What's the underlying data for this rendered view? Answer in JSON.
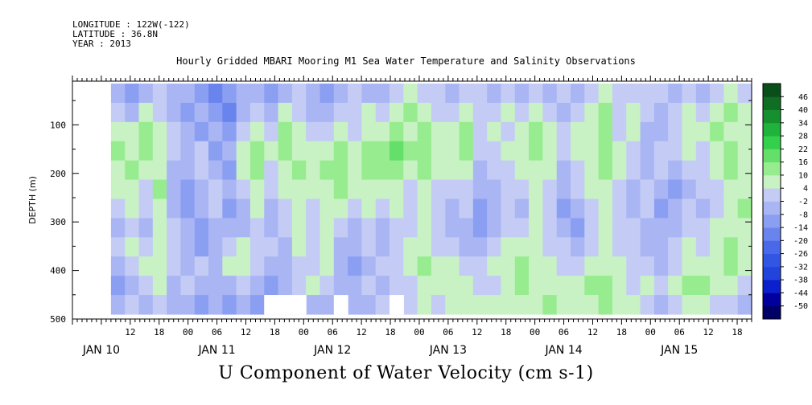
{
  "header": {
    "longitude": "LONGITUDE : 122W(-122)",
    "latitude": "LATITUDE : 36.8N",
    "year": "YEAR : 2013"
  },
  "title": "Hourly Gridded MBARI Mooring M1 Sea Water Temperature and Salinity Observations",
  "caption": "U Component of Water Velocity (cm s-1)",
  "chart_data": {
    "type": "heatmap",
    "variable": "U Component of Water Velocity",
    "units": "cm s-1",
    "ylabel": "DEPTH (m)",
    "y_reversed": true,
    "ylim": [
      500,
      10
    ],
    "y_ticks": [
      100,
      200,
      300,
      400,
      500
    ],
    "x_hour_range": [
      0,
      141
    ],
    "x_hour_ticks": [
      {
        "h": 12,
        "label": "12"
      },
      {
        "h": 18,
        "label": "18"
      },
      {
        "h": 24,
        "label": "00"
      },
      {
        "h": 30,
        "label": "06"
      },
      {
        "h": 36,
        "label": "12"
      },
      {
        "h": 42,
        "label": "18"
      },
      {
        "h": 48,
        "label": "00"
      },
      {
        "h": 54,
        "label": "06"
      },
      {
        "h": 60,
        "label": "12"
      },
      {
        "h": 66,
        "label": "18"
      },
      {
        "h": 72,
        "label": "00"
      },
      {
        "h": 78,
        "label": "06"
      },
      {
        "h": 84,
        "label": "12"
      },
      {
        "h": 90,
        "label": "18"
      },
      {
        "h": 96,
        "label": "00"
      },
      {
        "h": 102,
        "label": "06"
      },
      {
        "h": 108,
        "label": "12"
      },
      {
        "h": 114,
        "label": "18"
      },
      {
        "h": 120,
        "label": "00"
      },
      {
        "h": 126,
        "label": "06"
      },
      {
        "h": 132,
        "label": "12"
      },
      {
        "h": 138,
        "label": "18"
      }
    ],
    "x_date_labels": [
      {
        "h": 6,
        "label": "JAN 10"
      },
      {
        "h": 30,
        "label": "JAN 11"
      },
      {
        "h": 54,
        "label": "JAN 12"
      },
      {
        "h": 78,
        "label": "JAN 13"
      },
      {
        "h": 102,
        "label": "JAN 14"
      },
      {
        "h": 126,
        "label": "JAN 15"
      }
    ],
    "data_start_hour": 8,
    "colorbar": {
      "levels": [
        -50,
        -44,
        -38,
        -32,
        -26,
        -20,
        -14,
        -8,
        -2,
        4,
        10,
        16,
        22,
        28,
        34,
        40,
        46
      ],
      "colors": [
        "#000066",
        "#00009e",
        "#0b1fcc",
        "#2244dd",
        "#3355e4",
        "#4a68ea",
        "#6a84ee",
        "#8b9ff2",
        "#aab6f4",
        "#c4ccf5",
        "#c8f2c4",
        "#98ec90",
        "#64e06a",
        "#33d04c",
        "#1fb33c",
        "#168f2f",
        "#0f6e24",
        "#0a4f1a"
      ]
    },
    "rows": [
      [
        -8,
        -14,
        -8,
        -2,
        -8,
        -8,
        -14,
        -20,
        -14,
        -8,
        -8,
        -14,
        -8,
        -2,
        -8,
        -14,
        -8,
        -2,
        -8,
        -8,
        -2,
        4,
        -2,
        -2,
        -8,
        -2,
        -2,
        -8,
        -2,
        -8,
        -2,
        -8,
        -2,
        -8,
        -2,
        4,
        -2,
        -2,
        -2,
        -2,
        -8,
        -2,
        -8,
        -2,
        4,
        -2
      ],
      [
        -2,
        -8,
        4,
        -2,
        -8,
        -14,
        -8,
        -14,
        -20,
        -8,
        -2,
        -8,
        4,
        -2,
        -8,
        -8,
        -2,
        -2,
        4,
        -2,
        4,
        10,
        4,
        -2,
        -2,
        4,
        -2,
        -2,
        4,
        -2,
        4,
        -2,
        -8,
        -2,
        4,
        10,
        -2,
        4,
        -2,
        -8,
        -2,
        4,
        -2,
        4,
        10,
        4
      ],
      [
        4,
        4,
        10,
        4,
        -2,
        -8,
        -14,
        -8,
        -14,
        -2,
        4,
        -2,
        10,
        4,
        -2,
        -2,
        4,
        -2,
        4,
        4,
        10,
        4,
        10,
        4,
        4,
        10,
        -2,
        4,
        -2,
        4,
        10,
        4,
        -2,
        4,
        4,
        10,
        -2,
        4,
        -8,
        -8,
        -2,
        4,
        4,
        10,
        4,
        4
      ],
      [
        10,
        4,
        10,
        4,
        -2,
        -8,
        -2,
        -14,
        -8,
        4,
        10,
        4,
        10,
        4,
        4,
        4,
        10,
        4,
        10,
        10,
        16,
        10,
        10,
        4,
        4,
        10,
        -2,
        -2,
        4,
        4,
        10,
        4,
        -2,
        4,
        4,
        10,
        4,
        -2,
        -8,
        -2,
        -2,
        4,
        -2,
        4,
        10,
        4
      ],
      [
        4,
        10,
        4,
        4,
        -8,
        -8,
        -2,
        -8,
        -14,
        4,
        10,
        -2,
        4,
        10,
        4,
        10,
        10,
        4,
        10,
        10,
        10,
        4,
        10,
        4,
        4,
        4,
        -8,
        -2,
        -2,
        4,
        4,
        4,
        -8,
        -2,
        4,
        10,
        4,
        -2,
        -8,
        -2,
        -8,
        -2,
        -2,
        4,
        10,
        4
      ],
      [
        4,
        4,
        -2,
        10,
        -8,
        -14,
        -8,
        -2,
        -8,
        -2,
        4,
        -2,
        4,
        4,
        4,
        4,
        10,
        4,
        4,
        4,
        4,
        -2,
        4,
        -2,
        -2,
        -2,
        -8,
        -8,
        -2,
        -2,
        4,
        -2,
        -8,
        -2,
        4,
        4,
        -2,
        -8,
        -2,
        -8,
        -14,
        -8,
        -2,
        -2,
        4,
        4
      ],
      [
        -2,
        4,
        -2,
        4,
        -8,
        -14,
        -8,
        -2,
        -14,
        -8,
        4,
        -8,
        -2,
        4,
        -2,
        4,
        4,
        -2,
        4,
        -2,
        4,
        -2,
        4,
        -2,
        -8,
        -2,
        -14,
        -8,
        -2,
        -8,
        4,
        -2,
        -14,
        -8,
        -2,
        4,
        -2,
        -8,
        -2,
        -14,
        -8,
        -2,
        -8,
        -2,
        4,
        10
      ],
      [
        -8,
        -2,
        -8,
        4,
        -2,
        -8,
        -14,
        -8,
        -8,
        -8,
        -2,
        -8,
        -2,
        4,
        -2,
        4,
        -2,
        -8,
        -2,
        -8,
        -2,
        -2,
        4,
        -2,
        -8,
        -8,
        -14,
        -8,
        -2,
        -2,
        4,
        -2,
        -8,
        -14,
        -2,
        4,
        -2,
        -2,
        -8,
        -8,
        -8,
        -2,
        -2,
        4,
        4,
        4
      ],
      [
        -2,
        4,
        -2,
        4,
        -2,
        -8,
        -14,
        -8,
        -2,
        4,
        -2,
        -2,
        -8,
        4,
        -2,
        4,
        -8,
        -8,
        -2,
        -8,
        -2,
        4,
        4,
        -2,
        -2,
        -8,
        -8,
        -2,
        4,
        4,
        4,
        -2,
        -2,
        -8,
        -2,
        4,
        -2,
        -2,
        -8,
        -8,
        -2,
        4,
        -2,
        4,
        10,
        4
      ],
      [
        -8,
        -2,
        4,
        4,
        -2,
        -8,
        -2,
        -8,
        4,
        4,
        -2,
        -8,
        -8,
        -2,
        -2,
        4,
        -8,
        -14,
        -8,
        -2,
        -2,
        4,
        10,
        4,
        4,
        -2,
        -2,
        4,
        4,
        10,
        4,
        4,
        -2,
        -2,
        4,
        4,
        4,
        -2,
        -2,
        -8,
        -2,
        4,
        4,
        4,
        10,
        4
      ],
      [
        -14,
        -8,
        -2,
        4,
        -8,
        -2,
        -8,
        -8,
        -8,
        -2,
        -8,
        -14,
        -8,
        -2,
        4,
        -2,
        -8,
        -8,
        -2,
        -8,
        -2,
        -2,
        4,
        4,
        4,
        4,
        -2,
        -2,
        4,
        10,
        4,
        4,
        4,
        4,
        10,
        10,
        4,
        -2,
        4,
        -2,
        4,
        10,
        10,
        4,
        4,
        -2
      ],
      [
        -8,
        -2,
        -8,
        -2,
        -8,
        -8,
        -14,
        -8,
        -14,
        -8,
        -14,
        -8,
        -8,
        -14,
        -8,
        -8,
        -14,
        -8,
        -8,
        -2,
        -8,
        -2,
        4,
        -2,
        4,
        4,
        4,
        4,
        4,
        4,
        4,
        10,
        4,
        4,
        4,
        10,
        4,
        4,
        -2,
        -8,
        -2,
        4,
        4,
        -2,
        -2,
        -8
      ]
    ],
    "masked_cells": [
      {
        "row": 11,
        "col": 11
      },
      {
        "row": 11,
        "col": 12
      },
      {
        "row": 11,
        "col": 13
      },
      {
        "row": 11,
        "col": 16
      },
      {
        "row": 11,
        "col": 20
      }
    ]
  }
}
